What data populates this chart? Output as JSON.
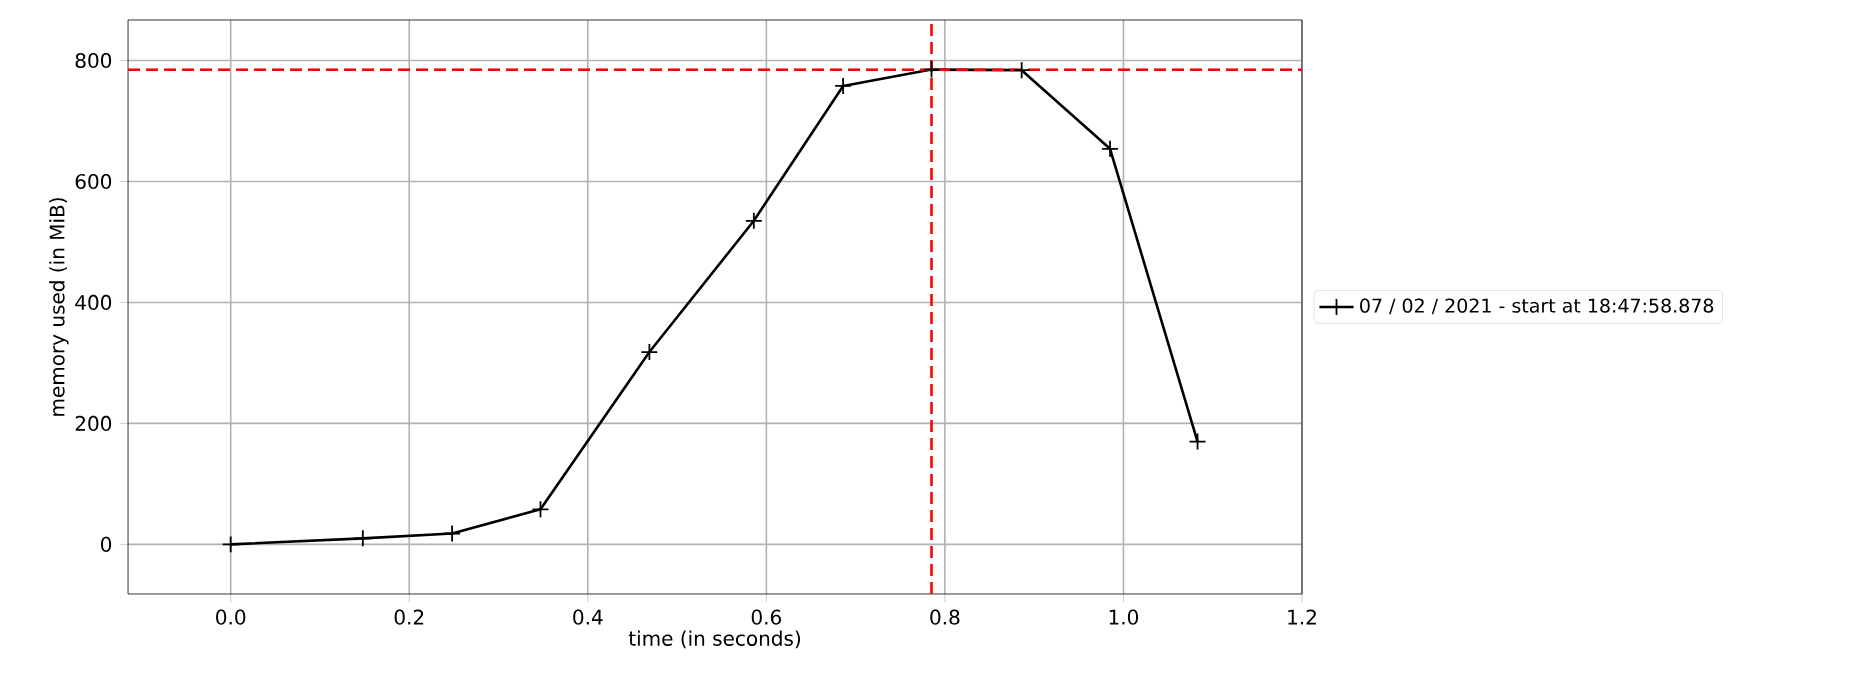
{
  "chart_data": {
    "type": "line",
    "xlabel": "time (in seconds)",
    "ylabel": "memory used (in MiB)",
    "x": [
      0,
      0.148,
      0.248,
      0.347,
      0.469,
      0.586,
      0.686,
      0.785,
      0.886,
      0.985,
      1.083
    ],
    "series": [
      {
        "name": "07 / 02 / 2021 - start at 18:47:58.878",
        "color": "#000000",
        "values": [
          0,
          10,
          18,
          58,
          318,
          535,
          758,
          785,
          784,
          654,
          170
        ]
      }
    ],
    "xlim": [
      -0.115,
      1.2
    ],
    "ylim": [
      -82,
      867
    ],
    "xticks": [
      {
        "value": 0,
        "label": "0.0"
      },
      0.2,
      0.4,
      0.6,
      0.8,
      {
        "value": 1,
        "label": "1.0"
      },
      1.2
    ],
    "yticks": [
      0,
      200,
      400,
      600,
      800
    ],
    "ref_lines": [
      {
        "axis": "y",
        "value": 785,
        "color": "#ff0000",
        "line_style": "dashed"
      },
      {
        "axis": "x",
        "value": 0.785,
        "color": "#ff0000",
        "line_style": "dashed"
      }
    ],
    "grid": true,
    "legend": "right",
    "marker": "cross",
    "line_style": "solid"
  }
}
